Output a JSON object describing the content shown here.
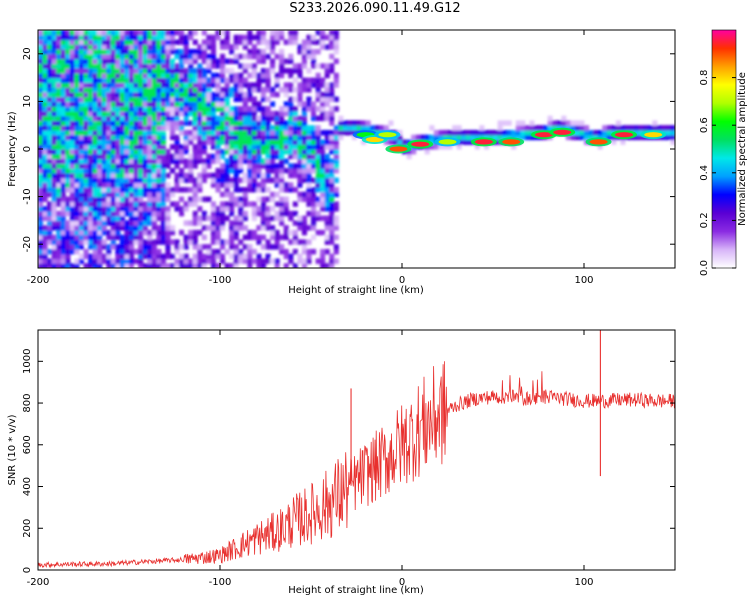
{
  "title": "S233.2026.090.11.49.G12",
  "chart_data": [
    {
      "type": "heatmap",
      "name": "spectrogram",
      "xlabel": "Height of straight line (km)",
      "ylabel": "Frequency (Hz)",
      "xlim": [
        -200,
        150
      ],
      "ylim": [
        -25,
        25
      ],
      "xticks": [
        -200,
        -100,
        0,
        100
      ],
      "yticks": [
        -20,
        -10,
        0,
        10,
        20
      ],
      "colorbar": {
        "label": "Normalized spectral amplitude",
        "range": [
          0,
          1
        ],
        "ticks": [
          "0.0",
          "0.2",
          "0.4",
          "0.6",
          "0.8"
        ],
        "colors": [
          "#ffffff",
          "#d7b4f8",
          "#8a2be2",
          "#5a00d4",
          "#0000ff",
          "#00a0ff",
          "#00e8e8",
          "#00e060",
          "#00ff00",
          "#b0ff00",
          "#ffff00",
          "#ffa000",
          "#ff3000",
          "#ff00a0"
        ]
      },
      "ridge": {
        "x": [
          -150,
          -130,
          -115,
          -100,
          -90,
          -80,
          -70,
          -60,
          -50,
          -45,
          -40,
          -35,
          -25,
          -15,
          -5,
          0,
          10,
          25,
          50,
          75,
          85,
          95,
          105,
          115,
          130,
          150
        ],
        "y": [
          10,
          14,
          9,
          4,
          2,
          0,
          2,
          3,
          -1,
          -5,
          -8,
          4,
          4,
          3,
          2,
          0,
          1,
          2,
          2,
          3,
          4,
          3,
          2,
          3,
          3,
          3
        ]
      },
      "hotspots": [
        {
          "x": -20,
          "y": 3,
          "value": 0.6
        },
        {
          "x": -15,
          "y": 2,
          "value": 0.8
        },
        {
          "x": -8,
          "y": 3,
          "value": 0.7
        },
        {
          "x": -2,
          "y": 0,
          "value": 0.9
        },
        {
          "x": 10,
          "y": 1,
          "value": 0.95
        },
        {
          "x": 25,
          "y": 1.5,
          "value": 0.7
        },
        {
          "x": 45,
          "y": 1.5,
          "value": 0.95
        },
        {
          "x": 60,
          "y": 1.5,
          "value": 0.9
        },
        {
          "x": 78,
          "y": 3,
          "value": 0.95
        },
        {
          "x": 88,
          "y": 3.5,
          "value": 0.95
        },
        {
          "x": 108,
          "y": 1.5,
          "value": 0.9
        },
        {
          "x": 122,
          "y": 3,
          "value": 0.95
        },
        {
          "x": 138,
          "y": 3,
          "value": 0.8
        }
      ]
    },
    {
      "type": "line",
      "name": "snr",
      "xlabel": "Height of straight line (km)",
      "ylabel": "SNR (10 * v/v)",
      "xlim": [
        -200,
        150
      ],
      "ylim": [
        0,
        1150
      ],
      "xticks": [
        -200,
        -100,
        0,
        100
      ],
      "yticks": [
        0,
        200,
        400,
        600,
        800,
        1000
      ],
      "color": "#e8302e",
      "series": [
        {
          "name": "SNR",
          "x": [
            -200,
            -180,
            -160,
            -140,
            -120,
            -100,
            -90,
            -80,
            -70,
            -60,
            -50,
            -40,
            -30,
            -20,
            -10,
            0,
            10,
            20,
            30,
            40,
            50,
            60,
            70,
            80,
            90,
            100,
            110,
            120,
            130,
            140,
            150
          ],
          "y": [
            25,
            28,
            30,
            40,
            50,
            70,
            110,
            150,
            180,
            230,
            270,
            320,
            390,
            460,
            520,
            600,
            680,
            740,
            790,
            820,
            830,
            830,
            820,
            830,
            820,
            810,
            810,
            815,
            815,
            810,
            810
          ]
        }
      ],
      "annotations": [
        {
          "x": -28,
          "y": 870,
          "note": "spike"
        },
        {
          "x": 109,
          "y": 1150,
          "note": "spike"
        },
        {
          "x": 109,
          "y": 450,
          "note": "dip"
        }
      ]
    }
  ]
}
